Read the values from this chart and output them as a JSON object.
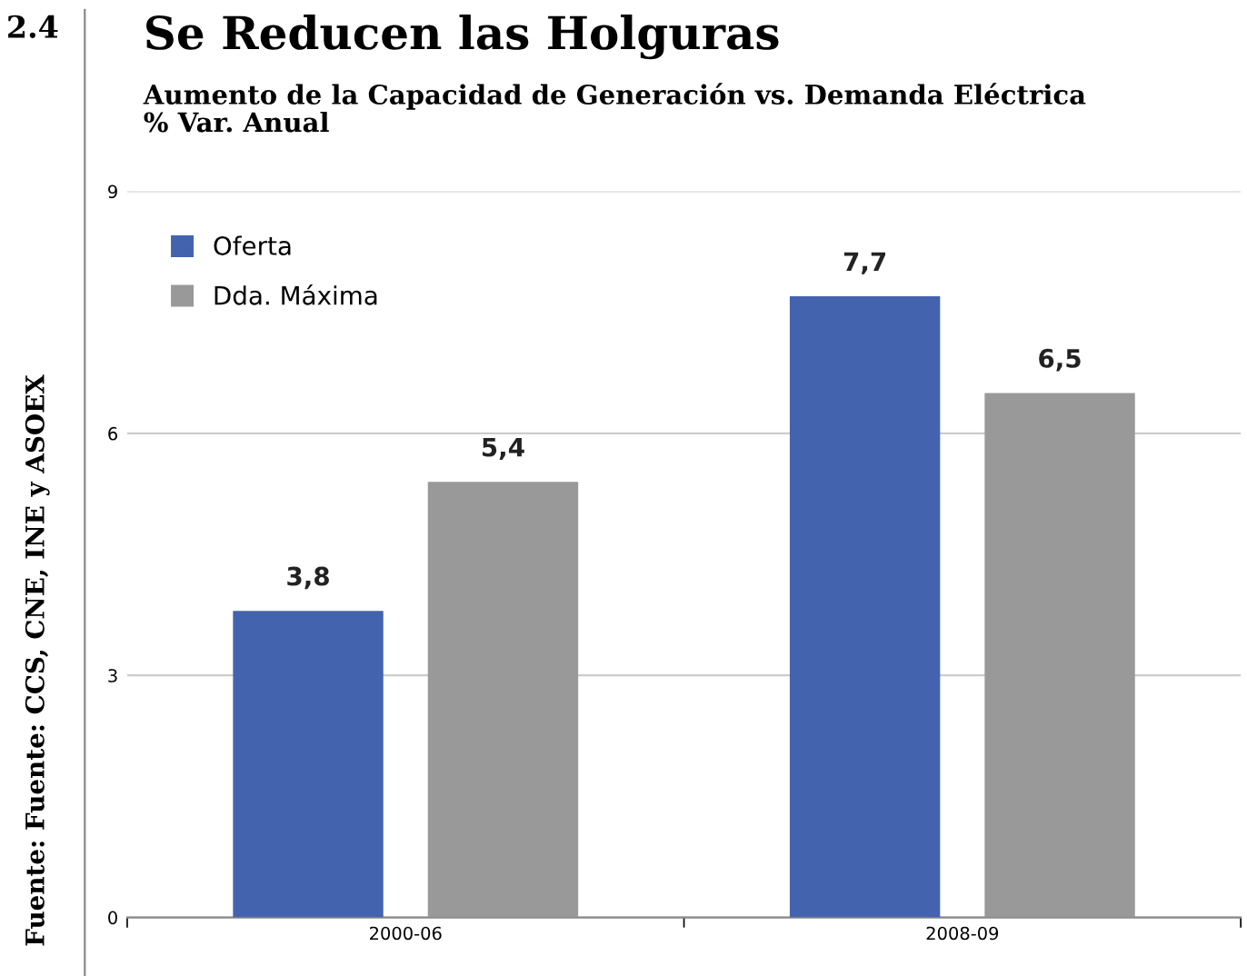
{
  "chart_data": {
    "type": "bar",
    "title": "Se Reducen las Holguras",
    "subtitle": "Aumento de la Capacidad de Generación vs. Demanda Eléctrica\n% Var. Anual",
    "annotations": [
      "2.4",
      "Fuente: Fuente: CCS, CNE, INE y ASOEX"
    ],
    "categories": [
      "2000-06",
      "2008-09"
    ],
    "series": [
      {
        "name": "Oferta",
        "color": "#4363ae",
        "values": [
          3.8,
          7.7
        ],
        "value_labels": [
          "3,8",
          "7,7"
        ]
      },
      {
        "name": "Dda. Máxima",
        "color": "#999999",
        "values": [
          5.4,
          6.5
        ],
        "value_labels": [
          "5,4",
          "6,5"
        ]
      }
    ],
    "ylim": [
      0,
      9
    ],
    "yticks": [
      0,
      3,
      6,
      9
    ],
    "grid": "y",
    "legend": "top left"
  }
}
